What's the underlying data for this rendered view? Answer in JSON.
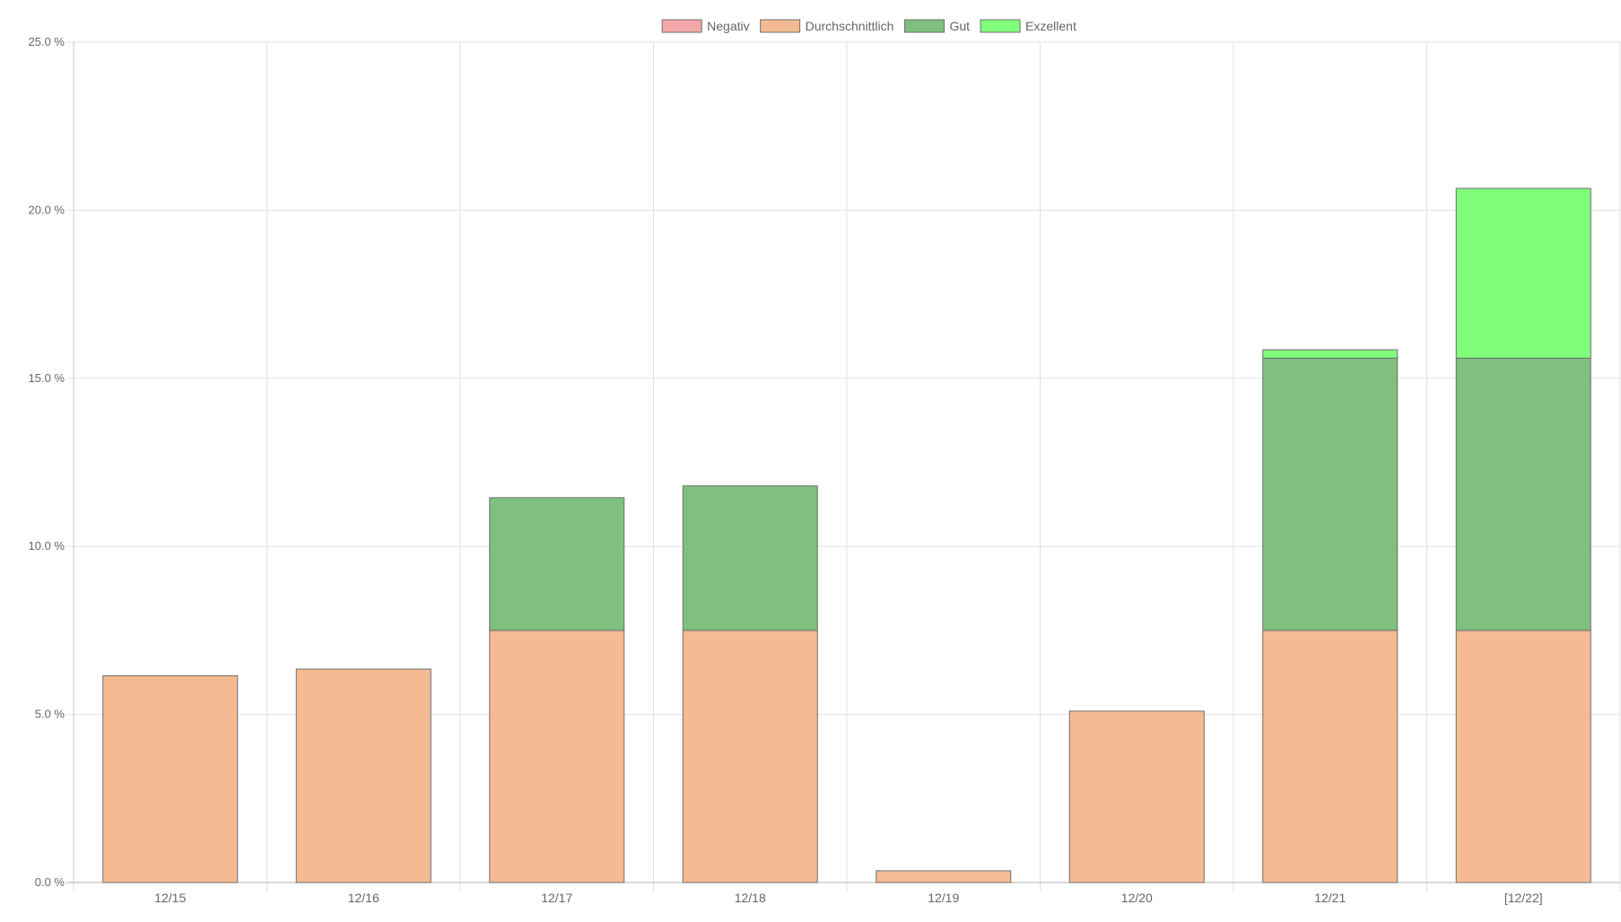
{
  "chart_data": {
    "type": "bar",
    "stacked": true,
    "title": "",
    "xlabel": "",
    "ylabel": "",
    "ylim": [
      0,
      25
    ],
    "y_ticks": [
      0,
      5,
      10,
      15,
      20,
      25
    ],
    "y_tick_labels": [
      "0.0 %",
      "5.0 %",
      "10.0 %",
      "15.0 %",
      "20.0 %",
      "25.0 %"
    ],
    "grid": true,
    "legend_position": "top-center",
    "categories": [
      "12/15",
      "12/16",
      "12/17",
      "12/18",
      "12/19",
      "12/20",
      "12/21",
      "[12/22]"
    ],
    "series": [
      {
        "name": "Negativ",
        "color": "#f4a7a9",
        "values": [
          0,
          0,
          0,
          0,
          0,
          0,
          0,
          0
        ]
      },
      {
        "name": "Durchschnittlich",
        "color": "#f4bb92",
        "values": [
          6.15,
          6.35,
          7.5,
          7.5,
          0.35,
          5.1,
          7.5,
          7.5
        ]
      },
      {
        "name": "Gut",
        "color": "#7fc07f",
        "values": [
          0,
          0,
          3.95,
          4.3,
          0,
          0,
          8.1,
          8.1
        ]
      },
      {
        "name": "Exzellent",
        "color": "#80fd7a",
        "values": [
          0,
          0,
          0,
          0,
          0,
          0,
          0.25,
          5.05
        ]
      }
    ]
  }
}
